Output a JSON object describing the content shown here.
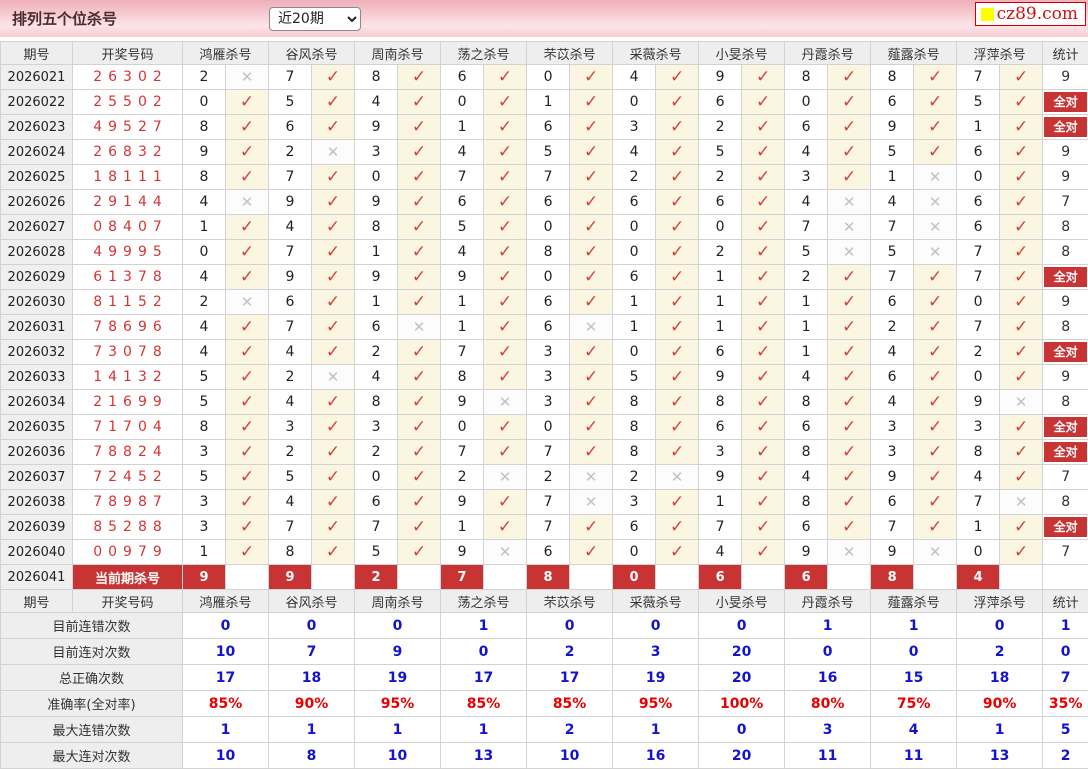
{
  "title": "排列五个位杀号",
  "range_select": {
    "value": "近20期"
  },
  "logo": {
    "text": "cz89.com"
  },
  "marks": {
    "check": "✓",
    "cross": "✕"
  },
  "perfect_label": "全对",
  "colors": {
    "accent_red": "#c83434",
    "check_red": "#d5413c",
    "cross_gray": "#c2c2c2",
    "ok_cell_bg": "#fbf6e1",
    "header_bg": "#eeeeee",
    "bar_pink": "#efafba",
    "stat_blue": "#1414cc",
    "stat_red": "#e80000",
    "logo_yellow": "#ffff00"
  },
  "columns": {
    "period": "期号",
    "code": "开奖号码",
    "stat": "统计",
    "experts": [
      "鸿雁杀号",
      "谷风杀号",
      "周南杀号",
      "荡之杀号",
      "芣苡杀号",
      "采薇杀号",
      "小旻杀号",
      "丹霞杀号",
      "薤露杀号",
      "浮萍杀号"
    ]
  },
  "rows": [
    {
      "period": "2026021",
      "code": "26302",
      "cells": [
        [
          2,
          0
        ],
        [
          7,
          1
        ],
        [
          8,
          1
        ],
        [
          6,
          1
        ],
        [
          0,
          1
        ],
        [
          4,
          1
        ],
        [
          9,
          1
        ],
        [
          8,
          1
        ],
        [
          8,
          1
        ],
        [
          7,
          1
        ]
      ],
      "stat": "9"
    },
    {
      "period": "2026022",
      "code": "25502",
      "cells": [
        [
          0,
          1
        ],
        [
          5,
          1
        ],
        [
          4,
          1
        ],
        [
          0,
          1
        ],
        [
          1,
          1
        ],
        [
          0,
          1
        ],
        [
          6,
          1
        ],
        [
          0,
          1
        ],
        [
          6,
          1
        ],
        [
          5,
          1
        ]
      ],
      "stat": "全对"
    },
    {
      "period": "2026023",
      "code": "49527",
      "cells": [
        [
          8,
          1
        ],
        [
          6,
          1
        ],
        [
          9,
          1
        ],
        [
          1,
          1
        ],
        [
          6,
          1
        ],
        [
          3,
          1
        ],
        [
          2,
          1
        ],
        [
          6,
          1
        ],
        [
          9,
          1
        ],
        [
          1,
          1
        ]
      ],
      "stat": "全对"
    },
    {
      "period": "2026024",
      "code": "26832",
      "cells": [
        [
          9,
          1
        ],
        [
          2,
          0
        ],
        [
          3,
          1
        ],
        [
          4,
          1
        ],
        [
          5,
          1
        ],
        [
          4,
          1
        ],
        [
          5,
          1
        ],
        [
          4,
          1
        ],
        [
          5,
          1
        ],
        [
          6,
          1
        ]
      ],
      "stat": "9"
    },
    {
      "period": "2026025",
      "code": "18111",
      "cells": [
        [
          8,
          1
        ],
        [
          7,
          1
        ],
        [
          0,
          1
        ],
        [
          7,
          1
        ],
        [
          7,
          1
        ],
        [
          2,
          1
        ],
        [
          2,
          1
        ],
        [
          3,
          1
        ],
        [
          1,
          0
        ],
        [
          0,
          1
        ]
      ],
      "stat": "9"
    },
    {
      "period": "2026026",
      "code": "29144",
      "cells": [
        [
          4,
          0
        ],
        [
          9,
          1
        ],
        [
          9,
          1
        ],
        [
          6,
          1
        ],
        [
          6,
          1
        ],
        [
          6,
          1
        ],
        [
          6,
          1
        ],
        [
          4,
          0
        ],
        [
          4,
          0
        ],
        [
          6,
          1
        ]
      ],
      "stat": "7"
    },
    {
      "period": "2026027",
      "code": "08407",
      "cells": [
        [
          1,
          1
        ],
        [
          4,
          1
        ],
        [
          8,
          1
        ],
        [
          5,
          1
        ],
        [
          0,
          1
        ],
        [
          0,
          1
        ],
        [
          0,
          1
        ],
        [
          7,
          0
        ],
        [
          7,
          0
        ],
        [
          6,
          1
        ]
      ],
      "stat": "8"
    },
    {
      "period": "2026028",
      "code": "49995",
      "cells": [
        [
          0,
          1
        ],
        [
          7,
          1
        ],
        [
          1,
          1
        ],
        [
          4,
          1
        ],
        [
          8,
          1
        ],
        [
          0,
          1
        ],
        [
          2,
          1
        ],
        [
          5,
          0
        ],
        [
          5,
          0
        ],
        [
          7,
          1
        ]
      ],
      "stat": "8"
    },
    {
      "period": "2026029",
      "code": "61378",
      "cells": [
        [
          4,
          1
        ],
        [
          9,
          1
        ],
        [
          9,
          1
        ],
        [
          9,
          1
        ],
        [
          0,
          1
        ],
        [
          6,
          1
        ],
        [
          1,
          1
        ],
        [
          2,
          1
        ],
        [
          7,
          1
        ],
        [
          7,
          1
        ]
      ],
      "stat": "全对"
    },
    {
      "period": "2026030",
      "code": "81152",
      "cells": [
        [
          2,
          0
        ],
        [
          6,
          1
        ],
        [
          1,
          1
        ],
        [
          1,
          1
        ],
        [
          6,
          1
        ],
        [
          1,
          1
        ],
        [
          1,
          1
        ],
        [
          1,
          1
        ],
        [
          6,
          1
        ],
        [
          0,
          1
        ]
      ],
      "stat": "9"
    },
    {
      "period": "2026031",
      "code": "78696",
      "cells": [
        [
          4,
          1
        ],
        [
          7,
          1
        ],
        [
          6,
          0
        ],
        [
          1,
          1
        ],
        [
          6,
          0
        ],
        [
          1,
          1
        ],
        [
          1,
          1
        ],
        [
          1,
          1
        ],
        [
          2,
          1
        ],
        [
          7,
          1
        ]
      ],
      "stat": "8"
    },
    {
      "period": "2026032",
      "code": "73078",
      "cells": [
        [
          4,
          1
        ],
        [
          4,
          1
        ],
        [
          2,
          1
        ],
        [
          7,
          1
        ],
        [
          3,
          1
        ],
        [
          0,
          1
        ],
        [
          6,
          1
        ],
        [
          1,
          1
        ],
        [
          4,
          1
        ],
        [
          2,
          1
        ]
      ],
      "stat": "全对"
    },
    {
      "period": "2026033",
      "code": "14132",
      "cells": [
        [
          5,
          1
        ],
        [
          2,
          0
        ],
        [
          4,
          1
        ],
        [
          8,
          1
        ],
        [
          3,
          1
        ],
        [
          5,
          1
        ],
        [
          9,
          1
        ],
        [
          4,
          1
        ],
        [
          6,
          1
        ],
        [
          0,
          1
        ]
      ],
      "stat": "9"
    },
    {
      "period": "2026034",
      "code": "21699",
      "cells": [
        [
          5,
          1
        ],
        [
          4,
          1
        ],
        [
          8,
          1
        ],
        [
          9,
          0
        ],
        [
          3,
          1
        ],
        [
          8,
          1
        ],
        [
          8,
          1
        ],
        [
          8,
          1
        ],
        [
          4,
          1
        ],
        [
          9,
          0
        ]
      ],
      "stat": "8"
    },
    {
      "period": "2026035",
      "code": "71704",
      "cells": [
        [
          8,
          1
        ],
        [
          3,
          1
        ],
        [
          3,
          1
        ],
        [
          0,
          1
        ],
        [
          0,
          1
        ],
        [
          8,
          1
        ],
        [
          6,
          1
        ],
        [
          6,
          1
        ],
        [
          3,
          1
        ],
        [
          3,
          1
        ]
      ],
      "stat": "全对"
    },
    {
      "period": "2026036",
      "code": "78824",
      "cells": [
        [
          3,
          1
        ],
        [
          2,
          1
        ],
        [
          2,
          1
        ],
        [
          7,
          1
        ],
        [
          7,
          1
        ],
        [
          8,
          1
        ],
        [
          3,
          1
        ],
        [
          8,
          1
        ],
        [
          3,
          1
        ],
        [
          8,
          1
        ]
      ],
      "stat": "全对"
    },
    {
      "period": "2026037",
      "code": "72452",
      "cells": [
        [
          5,
          1
        ],
        [
          5,
          1
        ],
        [
          0,
          1
        ],
        [
          2,
          0
        ],
        [
          2,
          0
        ],
        [
          2,
          0
        ],
        [
          9,
          1
        ],
        [
          4,
          1
        ],
        [
          9,
          1
        ],
        [
          4,
          1
        ]
      ],
      "stat": "7"
    },
    {
      "period": "2026038",
      "code": "78987",
      "cells": [
        [
          3,
          1
        ],
        [
          4,
          1
        ],
        [
          6,
          1
        ],
        [
          9,
          1
        ],
        [
          7,
          0
        ],
        [
          3,
          1
        ],
        [
          1,
          1
        ],
        [
          8,
          1
        ],
        [
          6,
          1
        ],
        [
          7,
          0
        ]
      ],
      "stat": "8"
    },
    {
      "period": "2026039",
      "code": "85288",
      "cells": [
        [
          3,
          1
        ],
        [
          7,
          1
        ],
        [
          7,
          1
        ],
        [
          1,
          1
        ],
        [
          7,
          1
        ],
        [
          6,
          1
        ],
        [
          7,
          1
        ],
        [
          6,
          1
        ],
        [
          7,
          1
        ],
        [
          1,
          1
        ]
      ],
      "stat": "全对"
    },
    {
      "period": "2026040",
      "code": "00979",
      "cells": [
        [
          1,
          1
        ],
        [
          8,
          1
        ],
        [
          5,
          1
        ],
        [
          9,
          0
        ],
        [
          6,
          1
        ],
        [
          0,
          1
        ],
        [
          4,
          1
        ],
        [
          9,
          0
        ],
        [
          9,
          0
        ],
        [
          0,
          1
        ]
      ],
      "stat": "7"
    }
  ],
  "current_row": {
    "period": "2026041",
    "label": "当前期杀号",
    "kills": [
      9,
      9,
      2,
      7,
      8,
      0,
      6,
      6,
      8,
      4
    ],
    "stat": ""
  },
  "stats": [
    {
      "label": "目前连错次数",
      "values": [
        "0",
        "0",
        "0",
        "1",
        "0",
        "0",
        "0",
        "1",
        "1",
        "0"
      ],
      "total": "1",
      "style": "blue"
    },
    {
      "label": "目前连对次数",
      "values": [
        "10",
        "7",
        "9",
        "0",
        "2",
        "3",
        "20",
        "0",
        "0",
        "2"
      ],
      "total": "0",
      "style": "blue"
    },
    {
      "label": "总正确次数",
      "values": [
        "17",
        "18",
        "19",
        "17",
        "17",
        "19",
        "20",
        "16",
        "15",
        "18"
      ],
      "total": "7",
      "style": "blue"
    },
    {
      "label": "准确率(全对率)",
      "values": [
        "85%",
        "90%",
        "95%",
        "85%",
        "85%",
        "95%",
        "100%",
        "80%",
        "75%",
        "90%"
      ],
      "total": "35%",
      "style": "red"
    },
    {
      "label": "最大连错次数",
      "values": [
        "1",
        "1",
        "1",
        "1",
        "2",
        "1",
        "0",
        "3",
        "4",
        "1"
      ],
      "total": "5",
      "style": "blue"
    },
    {
      "label": "最大连对次数",
      "values": [
        "10",
        "8",
        "10",
        "13",
        "10",
        "16",
        "20",
        "11",
        "11",
        "13"
      ],
      "total": "2",
      "style": "blue"
    }
  ]
}
